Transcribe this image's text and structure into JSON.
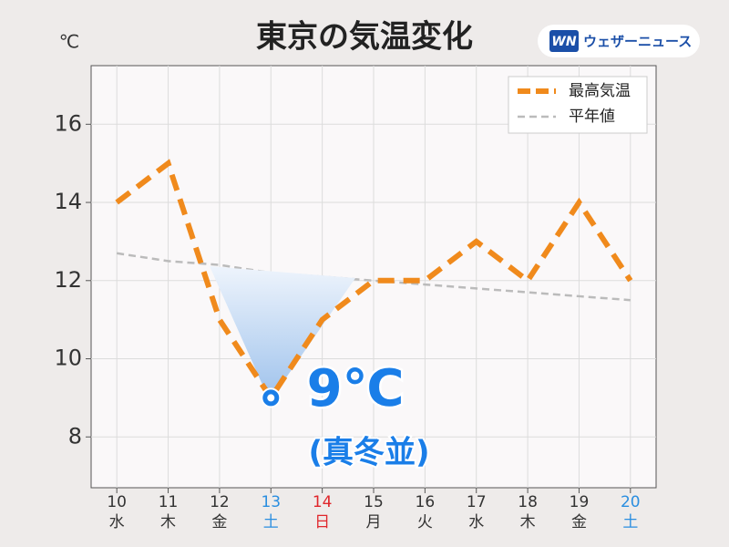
{
  "brand_mark": "WN",
  "brand": "ウェザーニュース",
  "chart_data": {
    "type": "line",
    "title": "東京の気温変化",
    "ylabel": "℃",
    "categories": [
      "10",
      "11",
      "12",
      "13",
      "14",
      "15",
      "16",
      "17",
      "18",
      "19",
      "20"
    ],
    "weekdays": [
      "水",
      "木",
      "金",
      "土",
      "日",
      "月",
      "火",
      "水",
      "木",
      "金",
      "土"
    ],
    "tick_colors": [
      "#333333",
      "#333333",
      "#333333",
      "#2a8ee0",
      "#e0262b",
      "#333333",
      "#333333",
      "#333333",
      "#333333",
      "#333333",
      "#2a8ee0"
    ],
    "series": [
      {
        "name": "最高気温",
        "color": "#f08a1c",
        "dash": "18 10",
        "width": 6,
        "values": [
          14,
          15,
          11,
          9,
          11,
          12,
          12,
          13,
          12,
          14,
          12
        ]
      },
      {
        "name": "平年値",
        "color": "#bbbbbb",
        "dash": "8 5",
        "width": 2.5,
        "values": [
          12.7,
          12.5,
          12.4,
          12.2,
          12.1,
          12.0,
          11.9,
          11.8,
          11.7,
          11.6,
          11.5
        ]
      }
    ],
    "ylim": [
      6.7,
      17.5
    ],
    "yticks": [
      8,
      10,
      12,
      14,
      16
    ],
    "grid": true,
    "legend": "upper right",
    "annotations": [
      {
        "text": "9℃",
        "color": "#1a7ee8"
      },
      {
        "text": "(真冬並)",
        "color": "#1a7ee8"
      }
    ]
  }
}
